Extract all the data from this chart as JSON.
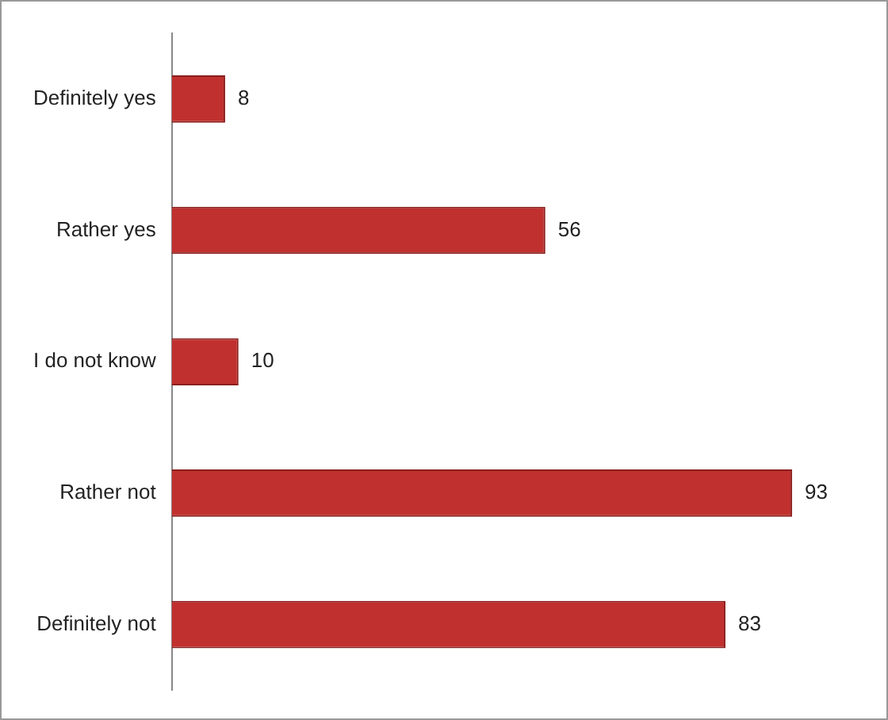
{
  "chart_data": {
    "type": "bar",
    "orientation": "horizontal",
    "categories": [
      "Definitely yes",
      "Rather yes",
      "I do not know",
      "Rather not",
      "Definitely not"
    ],
    "values": [
      8,
      56,
      10,
      93,
      83
    ],
    "color": "#c0302e",
    "data_labels": true,
    "grid": false,
    "legend": false
  }
}
